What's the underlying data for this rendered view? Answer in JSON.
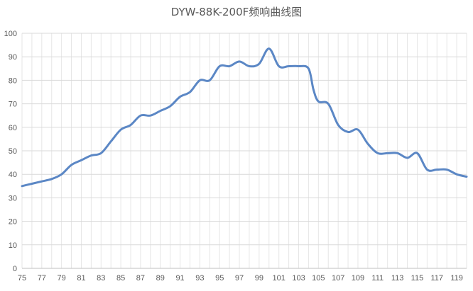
{
  "chart_data": {
    "type": "line",
    "title": "DYW-88K-200F频响曲线图",
    "xlabel": "",
    "ylabel": "",
    "ylim": [
      0,
      100
    ],
    "y_ticks": [
      0,
      10,
      20,
      30,
      40,
      50,
      60,
      70,
      80,
      90,
      100
    ],
    "xlim": [
      75,
      120
    ],
    "x_ticks": [
      75,
      77,
      79,
      81,
      83,
      85,
      87,
      89,
      91,
      93,
      95,
      97,
      99,
      101,
      103,
      105,
      107,
      109,
      111,
      113,
      115,
      117,
      119
    ],
    "grid": "on",
    "legend": "none",
    "series": [
      {
        "color": "#5b87c5",
        "x": [
          75,
          76,
          77,
          78,
          79,
          80,
          81,
          82,
          83,
          84,
          85,
          86,
          87,
          88,
          89,
          90,
          91,
          92,
          93,
          94,
          95,
          96,
          97,
          98,
          99,
          100,
          101,
          102,
          103,
          104,
          104.5,
          105,
          106,
          107,
          108,
          109,
          110,
          111,
          112,
          113,
          114,
          115,
          116,
          117,
          118,
          119,
          120
        ],
        "y": [
          35,
          36,
          37,
          38,
          40,
          44,
          46,
          48,
          49,
          54,
          59,
          61,
          65,
          65,
          67,
          69,
          73,
          75,
          80,
          80,
          86,
          86,
          88,
          86,
          87,
          93.5,
          86,
          86,
          86,
          85,
          76,
          71,
          70,
          61,
          58,
          59,
          53,
          49,
          49,
          49,
          47,
          49,
          42,
          42,
          42,
          40,
          39
        ]
      }
    ]
  }
}
